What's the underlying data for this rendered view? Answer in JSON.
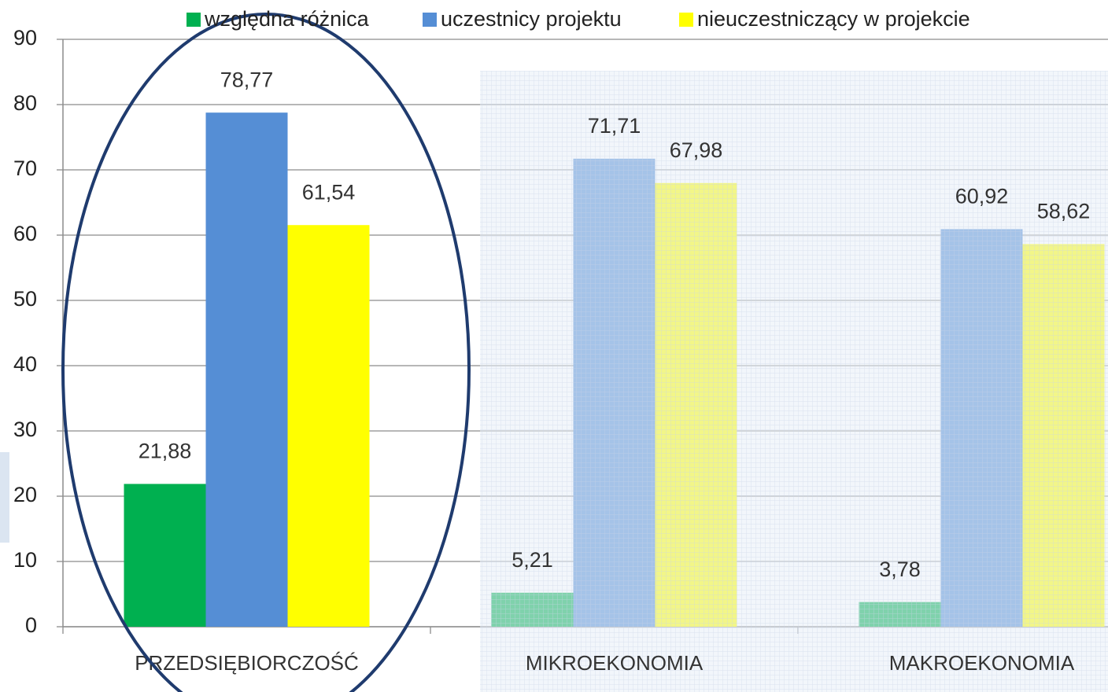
{
  "chart_data": {
    "type": "bar",
    "categories": [
      "PRZEDSIĘBIORCZOŚĆ",
      "MIKROEKONOMIA",
      "MAKROEKONOMIA"
    ],
    "series": [
      {
        "name": "względna różnica",
        "color": "#00b050",
        "values": [
          21.88,
          5.21,
          3.78
        ],
        "value_labels": [
          "21,88",
          "5,21",
          "3,78"
        ]
      },
      {
        "name": "uczestnicy projektu",
        "color": "#558ed5",
        "values": [
          78.77,
          71.71,
          60.92
        ],
        "value_labels": [
          "78,77",
          "71,71",
          "60,92"
        ]
      },
      {
        "name": "nieuczestniczący w projekcie",
        "color": "#ffff00",
        "values": [
          61.54,
          67.98,
          58.62
        ],
        "value_labels": [
          "61,54",
          "67,98",
          "58,62"
        ]
      }
    ],
    "ylim": [
      0,
      90
    ],
    "yticks": [
      0,
      10,
      20,
      30,
      40,
      50,
      60,
      70,
      80,
      90
    ],
    "grid": true,
    "legend": "top"
  }
}
